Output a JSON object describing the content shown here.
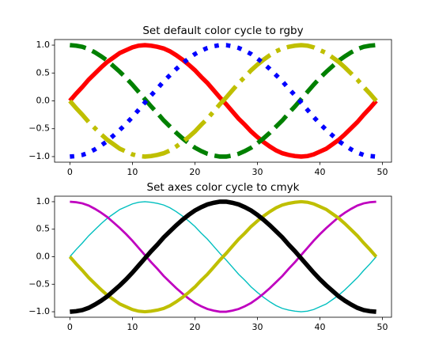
{
  "chart_data": [
    {
      "type": "line",
      "title": "Set default color cycle to rgby",
      "x": [
        0,
        1,
        2,
        3,
        4,
        5,
        6,
        7,
        8,
        9,
        10,
        11,
        12,
        13,
        14,
        15,
        16,
        17,
        18,
        19,
        20,
        21,
        22,
        23,
        24,
        25,
        26,
        27,
        28,
        29,
        30,
        31,
        32,
        33,
        34,
        35,
        36,
        37,
        38,
        39,
        40,
        41,
        42,
        43,
        44,
        45,
        46,
        47,
        48,
        49
      ],
      "xlim": [
        -2.45,
        51.45
      ],
      "xticks": [
        0,
        10,
        20,
        30,
        40,
        50
      ],
      "ylim": [
        -1.1,
        1.1
      ],
      "yticks": [
        {
          "value": 1,
          "label": "1.0"
        },
        {
          "value": 0.5,
          "label": "0.5"
        },
        {
          "value": 0,
          "label": "0.0"
        },
        {
          "value": -0.5,
          "label": "−0.5"
        },
        {
          "value": -1,
          "label": "−1.0"
        }
      ],
      "series": [
        {
          "color": "#ff0000",
          "linestyle": "solid",
          "linewidth": 4,
          "values": [
            0,
            0.13,
            0.25,
            0.38,
            0.49,
            0.6,
            0.7,
            0.78,
            0.86,
            0.91,
            0.96,
            0.99,
            1,
            0.99,
            0.97,
            0.94,
            0.89,
            0.82,
            0.74,
            0.65,
            0.55,
            0.43,
            0.32,
            0.19,
            0.06,
            -0.06,
            -0.19,
            -0.32,
            -0.43,
            -0.55,
            -0.65,
            -0.74,
            -0.82,
            -0.89,
            -0.94,
            -0.97,
            -0.99,
            -1,
            -0.99,
            -0.96,
            -0.91,
            -0.86,
            -0.78,
            -0.7,
            -0.6,
            -0.49,
            -0.38,
            -0.25,
            -0.13,
            0
          ]
        },
        {
          "color": "#008000",
          "linestyle": "dashed",
          "linewidth": 4,
          "values": [
            1,
            0.99,
            0.97,
            0.93,
            0.87,
            0.8,
            0.72,
            0.62,
            0.52,
            0.41,
            0.29,
            0.16,
            0.03,
            -0.1,
            -0.22,
            -0.35,
            -0.46,
            -0.57,
            -0.67,
            -0.76,
            -0.84,
            -0.9,
            -0.95,
            -0.98,
            -1,
            -1,
            -0.98,
            -0.95,
            -0.9,
            -0.84,
            -0.76,
            -0.67,
            -0.57,
            -0.46,
            -0.35,
            -0.22,
            -0.1,
            0.03,
            0.16,
            0.29,
            0.41,
            0.52,
            0.62,
            0.72,
            0.8,
            0.87,
            0.93,
            0.97,
            0.99,
            1
          ]
        },
        {
          "color": "#bfbf00",
          "linestyle": "dashdot",
          "linewidth": 4,
          "values": [
            0,
            -0.13,
            -0.25,
            -0.38,
            -0.49,
            -0.6,
            -0.7,
            -0.78,
            -0.86,
            -0.91,
            -0.96,
            -0.99,
            -1,
            -0.99,
            -0.97,
            -0.94,
            -0.89,
            -0.82,
            -0.74,
            -0.65,
            -0.55,
            -0.43,
            -0.32,
            -0.19,
            -0.06,
            0.06,
            0.19,
            0.32,
            0.43,
            0.55,
            0.65,
            0.74,
            0.82,
            0.89,
            0.94,
            0.97,
            0.99,
            1,
            0.99,
            0.96,
            0.91,
            0.86,
            0.78,
            0.7,
            0.6,
            0.49,
            0.38,
            0.25,
            0.13,
            0
          ]
        },
        {
          "color": "#0000ff",
          "linestyle": "dotted",
          "linewidth": 4,
          "values": [
            -1,
            -0.99,
            -0.97,
            -0.93,
            -0.87,
            -0.8,
            -0.72,
            -0.62,
            -0.52,
            -0.41,
            -0.29,
            -0.16,
            -0.03,
            0.1,
            0.22,
            0.35,
            0.46,
            0.57,
            0.67,
            0.76,
            0.84,
            0.9,
            0.95,
            0.98,
            1,
            1,
            0.98,
            0.95,
            0.9,
            0.84,
            0.76,
            0.67,
            0.57,
            0.46,
            0.35,
            0.22,
            0.1,
            -0.03,
            -0.16,
            -0.29,
            -0.41,
            -0.52,
            -0.62,
            -0.72,
            -0.8,
            -0.87,
            -0.93,
            -0.97,
            -0.99,
            -1
          ]
        }
      ]
    },
    {
      "type": "line",
      "title": "Set axes color cycle to cmyk",
      "x": [
        0,
        1,
        2,
        3,
        4,
        5,
        6,
        7,
        8,
        9,
        10,
        11,
        12,
        13,
        14,
        15,
        16,
        17,
        18,
        19,
        20,
        21,
        22,
        23,
        24,
        25,
        26,
        27,
        28,
        29,
        30,
        31,
        32,
        33,
        34,
        35,
        36,
        37,
        38,
        39,
        40,
        41,
        42,
        43,
        44,
        45,
        46,
        47,
        48,
        49
      ],
      "xlim": [
        -2.45,
        51.45
      ],
      "xticks": [
        0,
        10,
        20,
        30,
        40,
        50
      ],
      "ylim": [
        -1.1,
        1.1
      ],
      "yticks": [
        {
          "value": 1,
          "label": "1.0"
        },
        {
          "value": 0.5,
          "label": "0.5"
        },
        {
          "value": 0,
          "label": "0.0"
        },
        {
          "value": -0.5,
          "label": "−0.5"
        },
        {
          "value": -1,
          "label": "−1.0"
        }
      ],
      "series": [
        {
          "color": "#00bfbf",
          "linestyle": "solid",
          "linewidth": 1,
          "values": [
            0,
            0.13,
            0.25,
            0.38,
            0.49,
            0.6,
            0.7,
            0.78,
            0.86,
            0.91,
            0.96,
            0.99,
            1,
            0.99,
            0.97,
            0.94,
            0.89,
            0.82,
            0.74,
            0.65,
            0.55,
            0.43,
            0.32,
            0.19,
            0.06,
            -0.06,
            -0.19,
            -0.32,
            -0.43,
            -0.55,
            -0.65,
            -0.74,
            -0.82,
            -0.89,
            -0.94,
            -0.97,
            -0.99,
            -1,
            -0.99,
            -0.96,
            -0.91,
            -0.86,
            -0.78,
            -0.7,
            -0.6,
            -0.49,
            -0.38,
            -0.25,
            -0.13,
            0
          ]
        },
        {
          "color": "#bf00bf",
          "linestyle": "solid",
          "linewidth": 2,
          "values": [
            1,
            0.99,
            0.97,
            0.93,
            0.87,
            0.8,
            0.72,
            0.62,
            0.52,
            0.41,
            0.29,
            0.16,
            0.03,
            -0.1,
            -0.22,
            -0.35,
            -0.46,
            -0.57,
            -0.67,
            -0.76,
            -0.84,
            -0.9,
            -0.95,
            -0.98,
            -1,
            -1,
            -0.98,
            -0.95,
            -0.9,
            -0.84,
            -0.76,
            -0.67,
            -0.57,
            -0.46,
            -0.35,
            -0.22,
            -0.1,
            0.03,
            0.16,
            0.29,
            0.41,
            0.52,
            0.62,
            0.72,
            0.8,
            0.87,
            0.93,
            0.97,
            0.99,
            1
          ]
        },
        {
          "color": "#bfbf00",
          "linestyle": "solid",
          "linewidth": 3,
          "values": [
            0,
            -0.13,
            -0.25,
            -0.38,
            -0.49,
            -0.6,
            -0.7,
            -0.78,
            -0.86,
            -0.91,
            -0.96,
            -0.99,
            -1,
            -0.99,
            -0.97,
            -0.94,
            -0.89,
            -0.82,
            -0.74,
            -0.65,
            -0.55,
            -0.43,
            -0.32,
            -0.19,
            -0.06,
            0.06,
            0.19,
            0.32,
            0.43,
            0.55,
            0.65,
            0.74,
            0.82,
            0.89,
            0.94,
            0.97,
            0.99,
            1,
            0.99,
            0.96,
            0.91,
            0.86,
            0.78,
            0.7,
            0.6,
            0.49,
            0.38,
            0.25,
            0.13,
            0
          ]
        },
        {
          "color": "#000000",
          "linestyle": "solid",
          "linewidth": 4,
          "values": [
            -1,
            -0.99,
            -0.97,
            -0.93,
            -0.87,
            -0.8,
            -0.72,
            -0.62,
            -0.52,
            -0.41,
            -0.29,
            -0.16,
            -0.03,
            0.1,
            0.22,
            0.35,
            0.46,
            0.57,
            0.67,
            0.76,
            0.84,
            0.9,
            0.95,
            0.98,
            1,
            1,
            0.98,
            0.95,
            0.9,
            0.84,
            0.76,
            0.67,
            0.57,
            0.46,
            0.35,
            0.22,
            0.1,
            -0.03,
            -0.16,
            -0.29,
            -0.41,
            -0.52,
            -0.62,
            -0.72,
            -0.8,
            -0.87,
            -0.93,
            -0.97,
            -0.99,
            -1
          ]
        }
      ]
    }
  ]
}
